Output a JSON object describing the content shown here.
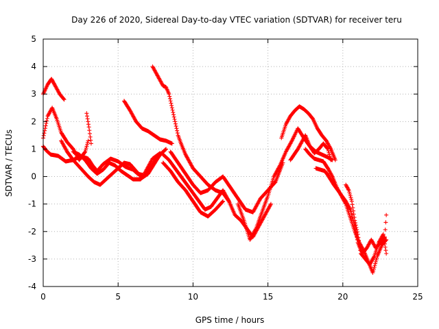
{
  "chart_data": {
    "type": "scatter",
    "title": "Day 226 of 2020, Sidereal Day-to-day VTEC variation (SDTVAR) for receiver teru",
    "xlabel": "GPS time / hours",
    "ylabel": "SDTVAR / TECUs",
    "xlim": [
      0,
      25
    ],
    "ylim": [
      -4,
      5
    ],
    "xticks": [
      0,
      5,
      10,
      15,
      20,
      25
    ],
    "yticks": [
      -4,
      -3,
      -2,
      -1,
      0,
      1,
      2,
      3,
      4,
      5
    ],
    "grid": true,
    "marker": "+",
    "series_color": "#ff0000",
    "series": [
      {
        "name": "track-1",
        "x": [
          0.0,
          0.3,
          0.55,
          0.8,
          1.1,
          1.4
        ],
        "y": [
          3.0,
          3.35,
          3.55,
          3.3,
          3.0,
          2.8
        ]
      },
      {
        "name": "track-2",
        "x": [
          0.0,
          0.3,
          0.6,
          0.9,
          1.2,
          1.6,
          2.0,
          2.4,
          2.8,
          3.0
        ],
        "y": [
          1.4,
          2.2,
          2.5,
          2.1,
          1.6,
          1.25,
          1.0,
          0.6,
          0.9,
          1.3
        ]
      },
      {
        "name": "track-3",
        "x": [
          0.0,
          0.2,
          0.5,
          1.0,
          1.5,
          2.0,
          2.5,
          3.0,
          3.3,
          3.6,
          4.0,
          4.5,
          5.0,
          5.5,
          6.0,
          6.3,
          6.7,
          7.0,
          7.3,
          7.8
        ],
        "y": [
          1.1,
          0.95,
          0.8,
          0.75,
          0.55,
          0.6,
          0.75,
          0.65,
          0.4,
          0.2,
          0.45,
          0.65,
          0.55,
          0.35,
          0.25,
          0.1,
          0.05,
          0.35,
          0.65,
          0.85
        ]
      },
      {
        "name": "track-4",
        "x": [
          1.2,
          1.6,
          2.0,
          2.5,
          3.0,
          3.4,
          3.8,
          4.2,
          4.6,
          5.0,
          5.4,
          5.8,
          6.2,
          6.6,
          7.0,
          7.4,
          7.8,
          8.2
        ],
        "y": [
          1.3,
          0.9,
          0.6,
          0.3,
          0.0,
          -0.2,
          -0.3,
          -0.1,
          0.1,
          0.3,
          0.5,
          0.45,
          0.2,
          -0.05,
          0.1,
          0.45,
          0.8,
          1.0
        ]
      },
      {
        "name": "track-5",
        "x": [
          2.0,
          2.4,
          2.8,
          3.2,
          3.6,
          4.0,
          4.4,
          4.8,
          5.2,
          5.6,
          6.0,
          6.5,
          7.0,
          7.5,
          8.0
        ],
        "y": [
          0.9,
          0.8,
          0.6,
          0.3,
          0.1,
          0.25,
          0.5,
          0.4,
          0.2,
          0.05,
          -0.1,
          -0.1,
          0.2,
          0.6,
          0.9
        ]
      },
      {
        "name": "track-6",
        "x": [
          2.9,
          3.05,
          3.2
        ],
        "y": [
          2.3,
          1.8,
          1.2
        ]
      },
      {
        "name": "track-7",
        "x": [
          5.4,
          5.8,
          6.2,
          6.6,
          7.0,
          7.4,
          7.8,
          8.2,
          8.6
        ],
        "y": [
          2.75,
          2.4,
          2.0,
          1.75,
          1.65,
          1.5,
          1.35,
          1.3,
          1.2
        ]
      },
      {
        "name": "track-8",
        "x": [
          7.3,
          7.5,
          7.8,
          8.0,
          8.2,
          8.4,
          8.6,
          8.8,
          9.0,
          9.2,
          9.5,
          10.0,
          10.5,
          11.0,
          11.5,
          12.0,
          12.4
        ],
        "y": [
          4.0,
          3.8,
          3.5,
          3.3,
          3.25,
          3.0,
          2.5,
          2.0,
          1.5,
          1.2,
          0.8,
          0.3,
          0.0,
          -0.3,
          -0.5,
          -0.6,
          -0.9
        ]
      },
      {
        "name": "track-9",
        "x": [
          8.0,
          8.4,
          8.8,
          9.2,
          9.6,
          10.0,
          10.4,
          10.8,
          11.2,
          11.6,
          12.0,
          12.4,
          12.8,
          13.2,
          13.6,
          14.0,
          14.4,
          14.8,
          15.2
        ],
        "y": [
          0.8,
          0.6,
          0.3,
          0.0,
          -0.3,
          -0.6,
          -0.9,
          -1.2,
          -1.1,
          -0.8,
          -0.5,
          -0.9,
          -1.4,
          -1.6,
          -1.9,
          -2.2,
          -1.8,
          -1.4,
          -1.0
        ]
      },
      {
        "name": "track-10",
        "x": [
          8.5,
          9.0,
          9.5,
          10.0,
          10.5,
          11.0,
          11.5,
          12.0,
          12.5,
          13.0,
          13.5,
          14.0,
          14.5,
          15.0,
          15.5,
          16.0
        ],
        "y": [
          0.9,
          0.5,
          0.1,
          -0.3,
          -0.6,
          -0.5,
          -0.2,
          0.0,
          -0.4,
          -0.8,
          -1.2,
          -1.3,
          -0.8,
          -0.5,
          -0.2,
          0.5
        ]
      },
      {
        "name": "track-11",
        "x": [
          8.0,
          8.5,
          9.0,
          9.5,
          10.0,
          10.5,
          11.0,
          11.5,
          12.0
        ],
        "y": [
          0.5,
          0.2,
          -0.2,
          -0.5,
          -0.9,
          -1.3,
          -1.45,
          -1.2,
          -0.9
        ]
      },
      {
        "name": "track-12",
        "x": [
          13.0,
          13.4,
          13.8,
          14.2,
          14.6,
          15.0,
          15.4,
          15.8,
          16.2,
          16.6,
          17.0,
          17.4,
          17.8,
          18.2,
          18.6,
          19.0,
          19.3
        ],
        "y": [
          -1.0,
          -1.6,
          -2.3,
          -1.9,
          -1.3,
          -0.7,
          0.0,
          0.4,
          0.9,
          1.3,
          1.75,
          1.4,
          1.1,
          0.9,
          0.8,
          0.7,
          0.6
        ]
      },
      {
        "name": "track-13",
        "x": [
          15.9,
          16.2,
          16.5,
          16.8,
          17.1,
          17.4,
          17.7,
          18.0,
          18.3,
          18.6,
          18.9,
          19.2,
          19.5
        ],
        "y": [
          1.4,
          1.9,
          2.2,
          2.4,
          2.55,
          2.45,
          2.3,
          2.1,
          1.75,
          1.5,
          1.3,
          1.0,
          0.6
        ]
      },
      {
        "name": "track-14",
        "x": [
          16.5,
          17.0,
          17.5,
          17.8,
          18.1,
          18.4,
          18.7,
          19.0,
          19.2
        ],
        "y": [
          0.6,
          1.0,
          1.5,
          1.1,
          0.85,
          1.0,
          1.2,
          1.0,
          0.6
        ]
      },
      {
        "name": "track-15",
        "x": [
          17.5,
          17.8,
          18.1,
          18.4,
          18.7,
          19.0,
          19.3,
          19.6,
          19.9,
          20.2,
          20.5,
          20.8,
          21.1,
          21.4,
          21.7,
          22.0,
          22.3,
          22.6,
          22.9
        ],
        "y": [
          1.0,
          0.8,
          0.65,
          0.6,
          0.55,
          0.3,
          0.0,
          -0.4,
          -0.7,
          -1.0,
          -1.5,
          -2.0,
          -2.4,
          -2.7,
          -3.1,
          -3.5,
          -2.9,
          -2.5,
          -2.3
        ]
      },
      {
        "name": "track-16",
        "x": [
          18.2,
          18.5,
          18.8,
          19.0,
          19.4,
          19.8,
          20.2,
          20.5,
          20.8,
          21.0,
          21.3,
          21.6,
          21.9,
          22.2,
          22.5,
          22.8,
          22.9
        ],
        "y": [
          0.3,
          0.25,
          0.2,
          0.05,
          -0.3,
          -0.6,
          -0.9,
          -1.2,
          -1.8,
          -2.4,
          -2.8,
          -2.6,
          -2.3,
          -2.6,
          -2.4,
          -2.2,
          -1.4
        ]
      },
      {
        "name": "track-17",
        "x": [
          20.2,
          20.4,
          20.6,
          20.8,
          21.0,
          21.2,
          21.5,
          21.8,
          22.1,
          22.4,
          22.7,
          22.9
        ],
        "y": [
          -0.3,
          -0.5,
          -0.9,
          -1.6,
          -2.1,
          -2.8,
          -3.0,
          -3.2,
          -2.9,
          -2.4,
          -2.1,
          -2.8
        ]
      }
    ]
  }
}
